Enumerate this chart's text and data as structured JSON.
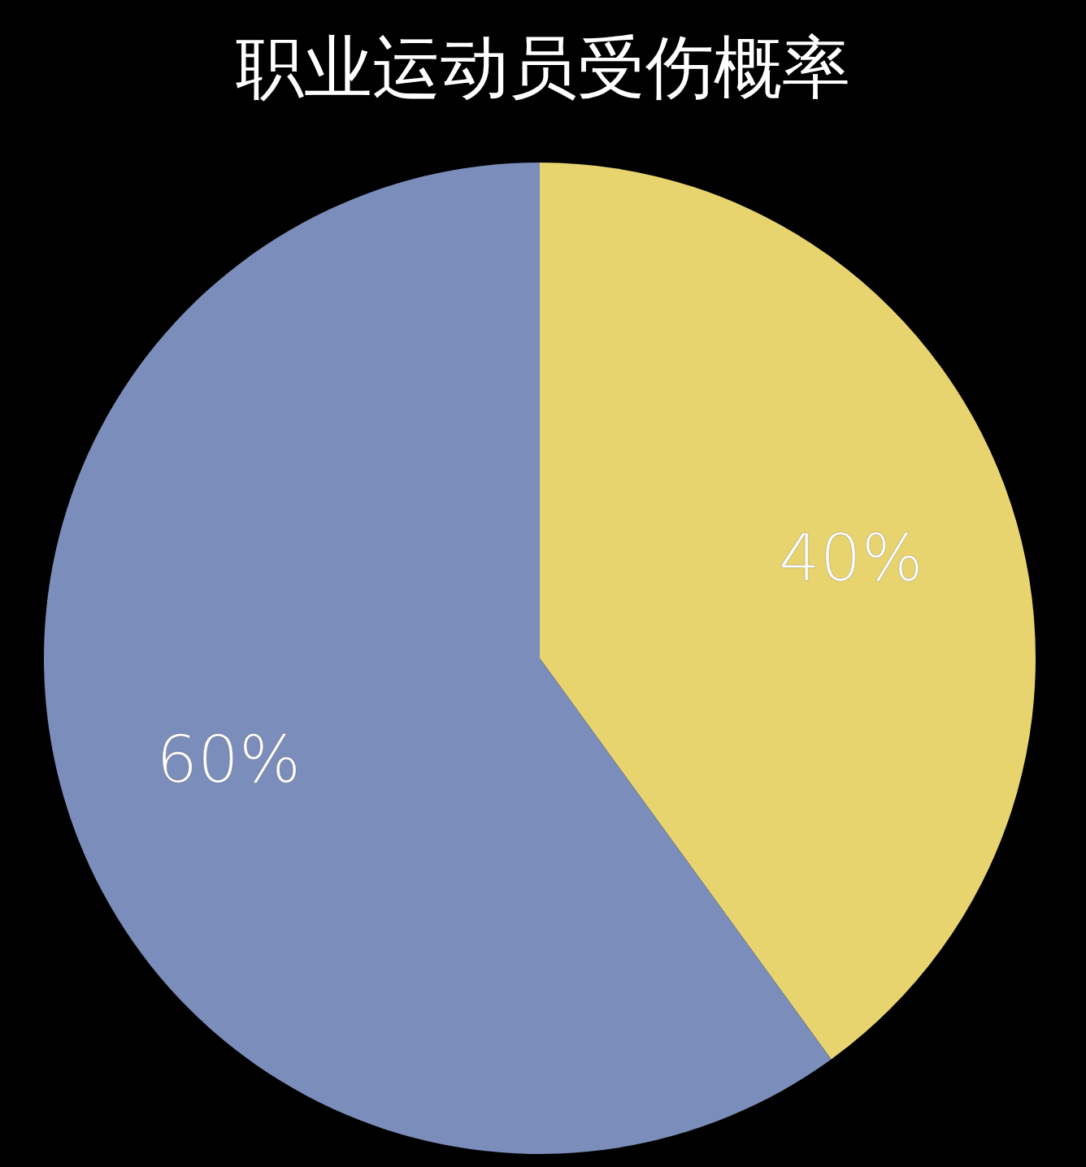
{
  "chart_data": {
    "type": "pie",
    "title": "职业运动员受伤概率",
    "categories": [
      null,
      null
    ],
    "values": [
      40,
      60
    ],
    "colors": [
      "#e8d46e",
      "#7b8dba"
    ],
    "value_labels": [
      "40%",
      "60%"
    ]
  }
}
